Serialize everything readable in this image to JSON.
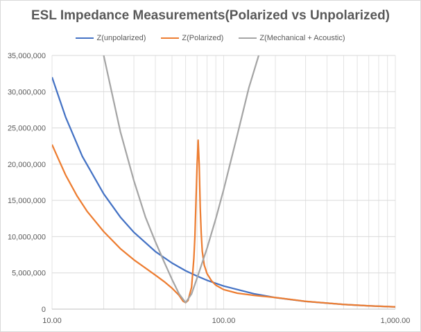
{
  "chart_data": {
    "type": "line",
    "title": "ESL Impedance Measurements(Polarized vs Unpolarized)",
    "xlabel": "",
    "ylabel": "",
    "x_scale": "log",
    "xlim": [
      10,
      1000
    ],
    "ylim": [
      0,
      35000000
    ],
    "x_ticks": [
      "10.00",
      "100.00",
      "1,000.00"
    ],
    "y_ticks": [
      "0",
      "5,000,000",
      "10,000,000",
      "15,000,000",
      "20,000,000",
      "25,000,000",
      "30,000,000",
      "35,000,000"
    ],
    "grid": "horizontal major, vertical minor (log)",
    "legend": "top",
    "series": [
      {
        "name": "Z(unpolarized)",
        "color": "#4472c4",
        "points": [
          [
            10,
            32000000
          ],
          [
            12,
            26500000
          ],
          [
            15,
            21100000
          ],
          [
            20,
            15900000
          ],
          [
            25,
            12700000
          ],
          [
            30,
            10600000
          ],
          [
            40,
            7950000
          ],
          [
            50,
            6360000
          ],
          [
            60,
            5300000
          ],
          [
            70,
            4550000
          ],
          [
            80,
            3980000
          ],
          [
            100,
            3180000
          ],
          [
            150,
            2120000
          ],
          [
            200,
            1590000
          ],
          [
            300,
            1060000
          ],
          [
            500,
            640000
          ],
          [
            700,
            455000
          ],
          [
            1000,
            320000
          ]
        ]
      },
      {
        "name": "Z(Polarized)",
        "color": "#ed7d31",
        "points": [
          [
            10,
            22700000
          ],
          [
            11,
            20500000
          ],
          [
            12,
            18500000
          ],
          [
            14,
            15600000
          ],
          [
            16,
            13500000
          ],
          [
            20,
            10700000
          ],
          [
            25,
            8350000
          ],
          [
            30,
            6800000
          ],
          [
            40,
            4700000
          ],
          [
            45,
            3800000
          ],
          [
            50,
            2900000
          ],
          [
            55,
            1900000
          ],
          [
            58,
            1100000
          ],
          [
            60,
            900000
          ],
          [
            62,
            1200000
          ],
          [
            65,
            3000000
          ],
          [
            67,
            7000000
          ],
          [
            68,
            10000000
          ],
          [
            69,
            15000000
          ],
          [
            70,
            20000000
          ],
          [
            71,
            23300000
          ],
          [
            72,
            20000000
          ],
          [
            73,
            14000000
          ],
          [
            74,
            10500000
          ],
          [
            75,
            8000000
          ],
          [
            77,
            6100000
          ],
          [
            80,
            4900000
          ],
          [
            85,
            3900000
          ],
          [
            90,
            3300000
          ],
          [
            100,
            2700000
          ],
          [
            120,
            2200000
          ],
          [
            150,
            1900000
          ],
          [
            200,
            1600000
          ],
          [
            300,
            1080000
          ],
          [
            500,
            650000
          ],
          [
            700,
            460000
          ],
          [
            1000,
            320000
          ]
        ]
      },
      {
        "name": "Z(Mechanical + Acoustic)",
        "color": "#a5a5a5",
        "points": [
          [
            20,
            35000000
          ],
          [
            25,
            24500000
          ],
          [
            30,
            17700000
          ],
          [
            35,
            12700000
          ],
          [
            40,
            9300000
          ],
          [
            45,
            6500000
          ],
          [
            50,
            4100000
          ],
          [
            55,
            2100000
          ],
          [
            60,
            900000
          ],
          [
            65,
            2100000
          ],
          [
            70,
            4300000
          ],
          [
            80,
            8400000
          ],
          [
            90,
            12500000
          ],
          [
            100,
            16500000
          ],
          [
            120,
            24000000
          ],
          [
            140,
            30500000
          ],
          [
            160,
            35000000
          ]
        ]
      }
    ]
  }
}
